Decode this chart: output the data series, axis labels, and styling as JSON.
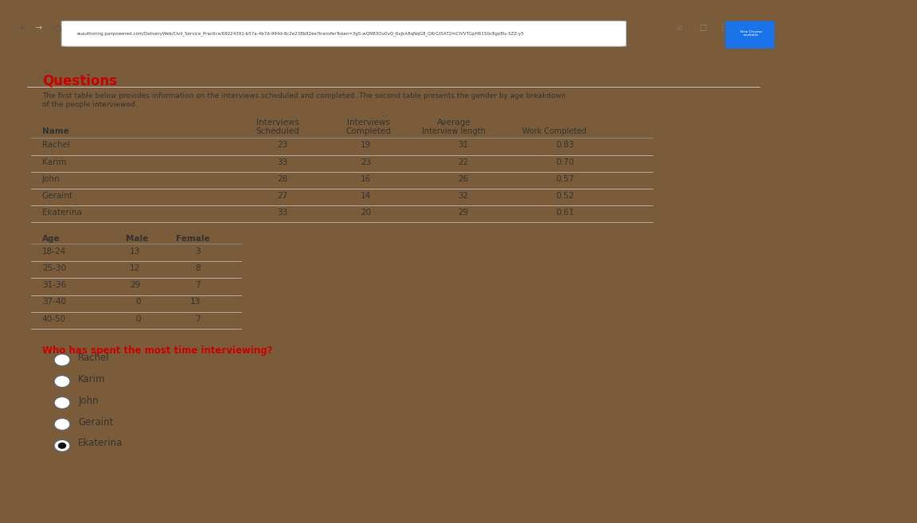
{
  "title": "Questions",
  "description_line1": "The first table below provides information on the interviews scheduled and completed. The second table presents the gender by age breakdown",
  "description_line2": "of the people interviewed.",
  "table1_col_headers_line1": [
    "",
    "Interviews",
    "Interviews",
    "Average",
    ""
  ],
  "table1_col_headers_line2": [
    "Name",
    "Scheduled",
    "Completed",
    "Interview length",
    "Work Completed"
  ],
  "table1_data": [
    [
      "Rachel",
      "23",
      "19",
      "31",
      "0.83"
    ],
    [
      "Karim",
      "33",
      "23",
      "22",
      "0.70"
    ],
    [
      "John",
      "28",
      "16",
      "26",
      "0.57"
    ],
    [
      "Geraint",
      "27",
      "14",
      "32",
      "0.52"
    ],
    [
      "Ekaterina",
      "33",
      "20",
      "29",
      "0.61"
    ]
  ],
  "table2_headers": [
    "Age",
    "Male",
    "Female"
  ],
  "table2_data": [
    [
      "18-24",
      "13",
      "3"
    ],
    [
      "25-30",
      "12",
      "8"
    ],
    [
      "31-36",
      "29",
      "7"
    ],
    [
      "37-40",
      "0",
      "13"
    ],
    [
      "40-50",
      "0",
      "7"
    ]
  ],
  "question": "Who has spent the most time interviewing?",
  "options": [
    "Rachel",
    "Karim",
    "John",
    "Geraint",
    "Ekaterina"
  ],
  "selected_option": "Ekaterina",
  "title_color": "#cc0000",
  "question_color": "#cc0000",
  "text_color": "#333333",
  "header_font_size": 7.5,
  "data_font_size": 7.5,
  "option_font_size": 8.5,
  "url_text": "euauthoring.panpowered.com/DeliveryWeb/Civil_Service_Practice/69224391-b57a-4b7d-994d-8c2e238b82ee?transferToken=3g5-wQNB3Ou0vQ_6vjkA8qNqG8_QKrGt5AT2mCIVVTGpHR150c8gx8lv-SZZ-y5",
  "outer_bg": "#7a5c3a",
  "screen_border": "#222222",
  "browser_chrome_bg": "#e0e0e0",
  "content_bg": "#f5f5f5",
  "tab_bg": "#f0f0f0"
}
